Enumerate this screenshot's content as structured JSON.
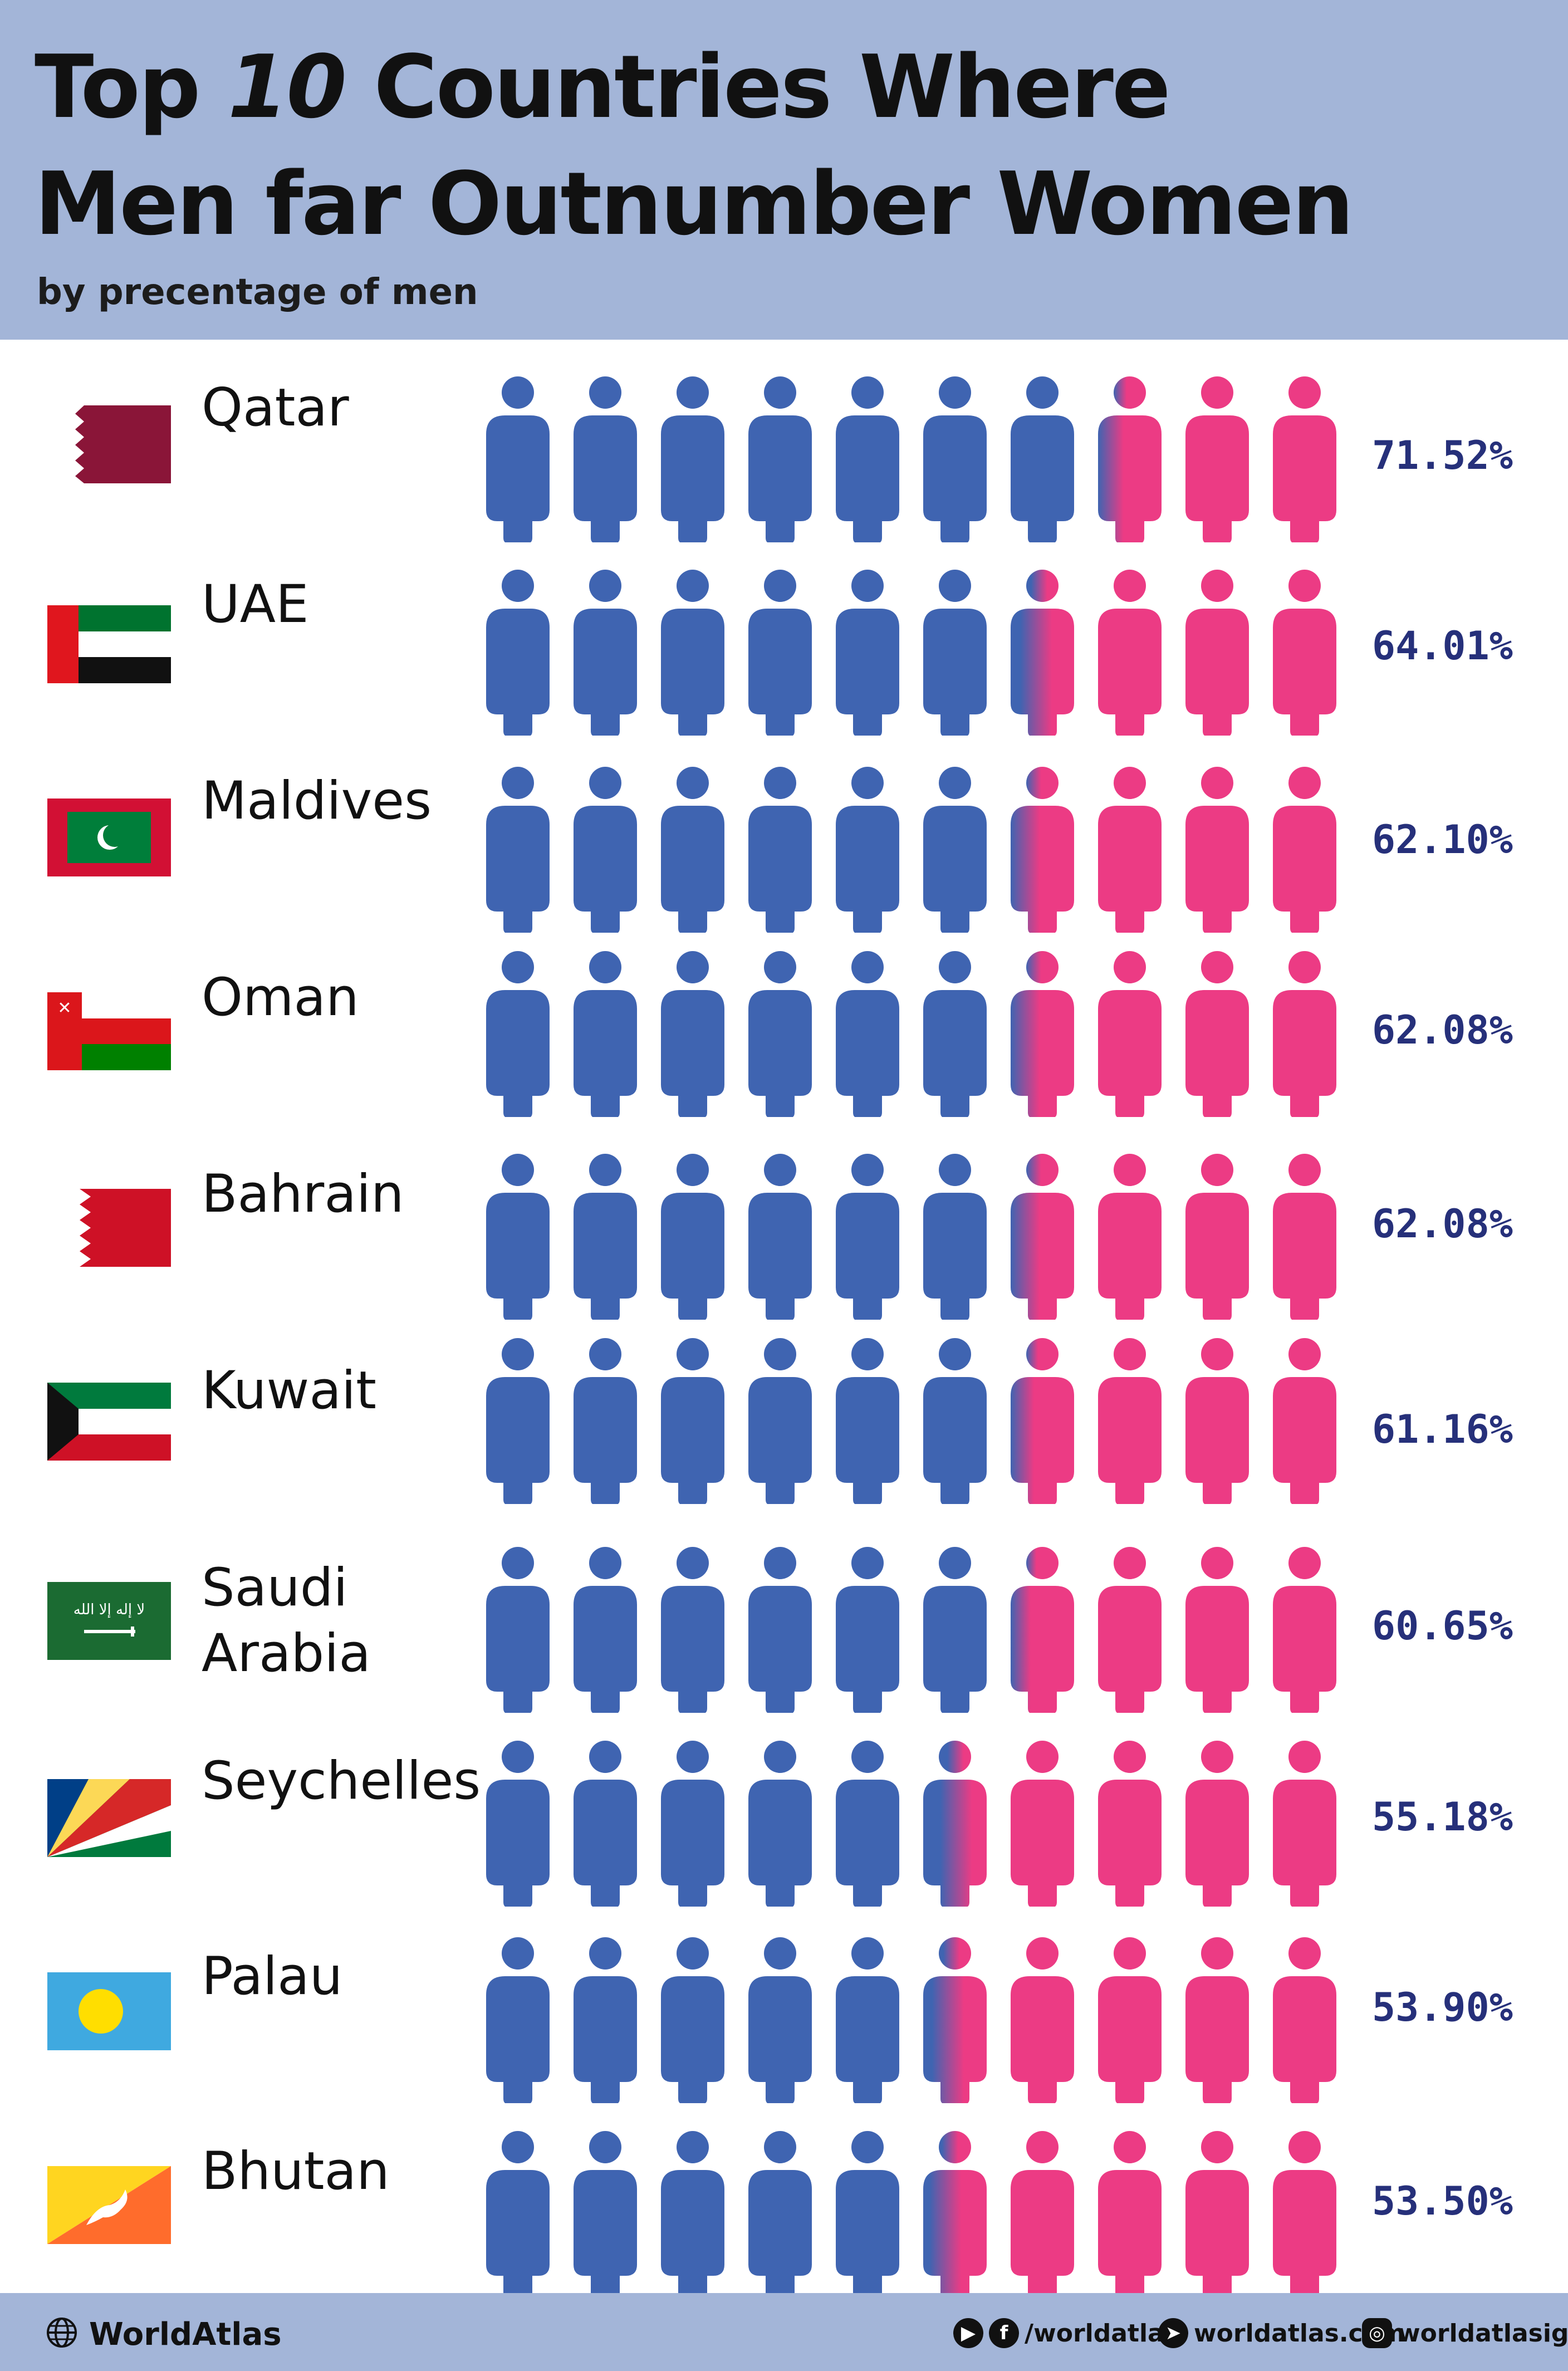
{
  "header": {
    "title_line1_prefix": "Top",
    "title_line1_num": "10",
    "title_line1_suffix": "Countries Where",
    "title_line2": "Men far Outnumber Women",
    "subtitle": "by precentage of men"
  },
  "colors": {
    "male": "#3f64b1",
    "female": "#ec3b84",
    "header_bg": "#a3b5d8",
    "value_text": "#26307a"
  },
  "chart_data": {
    "type": "pictogram",
    "icons_per_row": 10,
    "categories": [
      "Qatar",
      "UAE",
      "Maldives",
      "Oman",
      "Bahrain",
      "Kuwait",
      "Saudi Arabia",
      "Seychelles",
      "Palau",
      "Bhutan"
    ],
    "values": [
      71.52,
      64.01,
      62.1,
      62.08,
      62.08,
      61.16,
      60.65,
      55.18,
      53.9,
      53.5
    ],
    "labels": [
      "71.52%",
      "64.01%",
      "62.10%",
      "62.08%",
      "62.08%",
      "61.16%",
      "60.65%",
      "55.18%",
      "53.90%",
      "53.50%"
    ],
    "display_names": [
      "Qatar",
      "UAE",
      "Maldives",
      "Oman",
      "Bahrain",
      "Kuwait",
      "Saudi\nArabia",
      "Seychelles",
      "Palau",
      "Bhutan"
    ]
  },
  "footer": {
    "brand": "WorldAtlas",
    "social_facebook": "/worldatlas",
    "website": "worldatlas.com",
    "instagram": "worldatlasig"
  }
}
